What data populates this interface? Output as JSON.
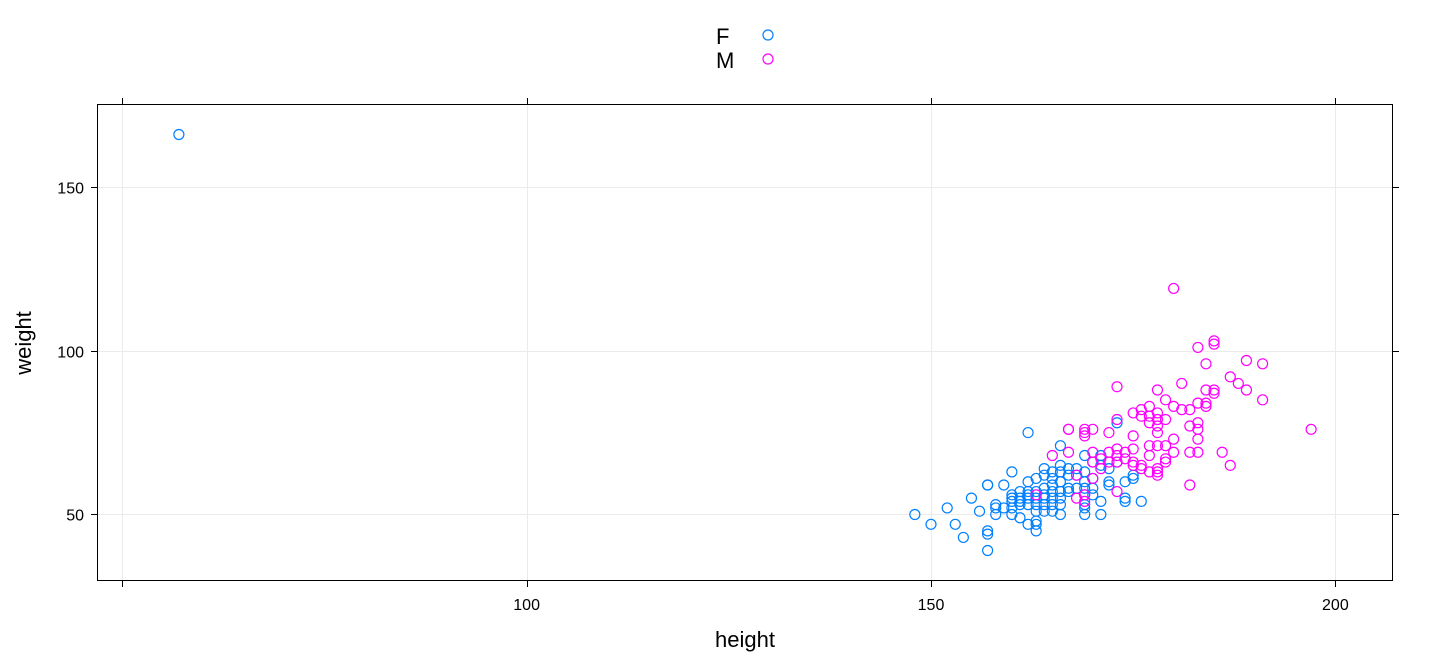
{
  "chart_data": {
    "type": "scatter",
    "xlabel": "height",
    "ylabel": "weight",
    "xlim": [
      47,
      207
    ],
    "ylim": [
      30,
      175
    ],
    "x_ticks": [
      100,
      150,
      200
    ],
    "y_ticks": [
      50,
      100,
      150
    ],
    "x_tick_labels": [
      "100",
      "150",
      "200"
    ],
    "y_tick_labels": [
      "50",
      "100",
      "150"
    ],
    "grid": true,
    "legend_placement": "top-center",
    "series": [
      {
        "name": "F",
        "color": "#0080ff",
        "points": [
          [
            57,
            166
          ],
          [
            148,
            50
          ],
          [
            150,
            47
          ],
          [
            152,
            52
          ],
          [
            153,
            47
          ],
          [
            154,
            43
          ],
          [
            155,
            55
          ],
          [
            156,
            51
          ],
          [
            157,
            59
          ],
          [
            157,
            59
          ],
          [
            157,
            45
          ],
          [
            157,
            44
          ],
          [
            157,
            39
          ],
          [
            158,
            53
          ],
          [
            158,
            52
          ],
          [
            158,
            50
          ],
          [
            159,
            59
          ],
          [
            159,
            52
          ],
          [
            160,
            63
          ],
          [
            160,
            56
          ],
          [
            160,
            55
          ],
          [
            160,
            54
          ],
          [
            160,
            52
          ],
          [
            160,
            50
          ],
          [
            161,
            57
          ],
          [
            161,
            55
          ],
          [
            161,
            54
          ],
          [
            161,
            53
          ],
          [
            161,
            49
          ],
          [
            162,
            75
          ],
          [
            162,
            60
          ],
          [
            162,
            57
          ],
          [
            162,
            56
          ],
          [
            162,
            55
          ],
          [
            162,
            53
          ],
          [
            162,
            47
          ],
          [
            163,
            61
          ],
          [
            163,
            57
          ],
          [
            163,
            55
          ],
          [
            163,
            53
          ],
          [
            163,
            51
          ],
          [
            163,
            48
          ],
          [
            163,
            47
          ],
          [
            163,
            45
          ],
          [
            164,
            64
          ],
          [
            164,
            62
          ],
          [
            164,
            58
          ],
          [
            164,
            56
          ],
          [
            164,
            55
          ],
          [
            164,
            53
          ],
          [
            164,
            51
          ],
          [
            165,
            63
          ],
          [
            165,
            61
          ],
          [
            165,
            59
          ],
          [
            165,
            57
          ],
          [
            165,
            55
          ],
          [
            165,
            53
          ],
          [
            165,
            51
          ],
          [
            166,
            71
          ],
          [
            166,
            65
          ],
          [
            166,
            63
          ],
          [
            166,
            60
          ],
          [
            166,
            57
          ],
          [
            166,
            55
          ],
          [
            166,
            53
          ],
          [
            166,
            50
          ],
          [
            167,
            64
          ],
          [
            167,
            62
          ],
          [
            167,
            58
          ],
          [
            167,
            57
          ],
          [
            168,
            64
          ],
          [
            168,
            62
          ],
          [
            168,
            58
          ],
          [
            169,
            68
          ],
          [
            169,
            63
          ],
          [
            169,
            60
          ],
          [
            169,
            58
          ],
          [
            169,
            56
          ],
          [
            169,
            53
          ],
          [
            169,
            52
          ],
          [
            169,
            50
          ],
          [
            170,
            66
          ],
          [
            170,
            61
          ],
          [
            170,
            58
          ],
          [
            170,
            56
          ],
          [
            171,
            68
          ],
          [
            171,
            65
          ],
          [
            171,
            54
          ],
          [
            171,
            50
          ],
          [
            172,
            64
          ],
          [
            172,
            60
          ],
          [
            172,
            59
          ],
          [
            173,
            78
          ],
          [
            173,
            66
          ],
          [
            174,
            60
          ],
          [
            174,
            55
          ],
          [
            174,
            54
          ],
          [
            175,
            62
          ],
          [
            175,
            61
          ],
          [
            176,
            54
          ]
        ]
      },
      {
        "name": "M",
        "color": "#ff00ff",
        "points": [
          [
            163,
            56
          ],
          [
            165,
            68
          ],
          [
            167,
            76
          ],
          [
            167,
            76
          ],
          [
            167,
            69
          ],
          [
            168,
            62
          ],
          [
            168,
            55
          ],
          [
            169,
            76
          ],
          [
            169,
            75
          ],
          [
            169,
            74
          ],
          [
            169,
            56
          ],
          [
            169,
            54
          ],
          [
            170,
            76
          ],
          [
            170,
            69
          ],
          [
            170,
            66
          ],
          [
            170,
            61
          ],
          [
            171,
            67
          ],
          [
            171,
            64
          ],
          [
            172,
            75
          ],
          [
            172,
            69
          ],
          [
            172,
            66
          ],
          [
            173,
            89
          ],
          [
            173,
            79
          ],
          [
            173,
            70
          ],
          [
            173,
            68
          ],
          [
            173,
            66
          ],
          [
            173,
            57
          ],
          [
            174,
            69
          ],
          [
            174,
            67
          ],
          [
            175,
            81
          ],
          [
            175,
            74
          ],
          [
            175,
            70
          ],
          [
            175,
            66
          ],
          [
            175,
            65
          ],
          [
            176,
            82
          ],
          [
            176,
            80
          ],
          [
            176,
            65
          ],
          [
            176,
            64
          ],
          [
            177,
            83
          ],
          [
            177,
            80
          ],
          [
            177,
            78
          ],
          [
            177,
            71
          ],
          [
            177,
            68
          ],
          [
            177,
            63
          ],
          [
            178,
            88
          ],
          [
            178,
            81
          ],
          [
            178,
            79
          ],
          [
            178,
            77
          ],
          [
            178,
            75
          ],
          [
            178,
            71
          ],
          [
            178,
            64
          ],
          [
            178,
            63
          ],
          [
            178,
            62
          ],
          [
            179,
            85
          ],
          [
            179,
            79
          ],
          [
            179,
            71
          ],
          [
            179,
            67
          ],
          [
            179,
            66
          ],
          [
            180,
            119
          ],
          [
            180,
            83
          ],
          [
            180,
            73
          ],
          [
            180,
            69
          ],
          [
            181,
            90
          ],
          [
            181,
            82
          ],
          [
            182,
            82
          ],
          [
            182,
            77
          ],
          [
            182,
            69
          ],
          [
            182,
            59
          ],
          [
            183,
            101
          ],
          [
            183,
            84
          ],
          [
            183,
            78
          ],
          [
            183,
            76
          ],
          [
            183,
            73
          ],
          [
            183,
            69
          ],
          [
            184,
            96
          ],
          [
            184,
            88
          ],
          [
            184,
            84
          ],
          [
            184,
            83
          ],
          [
            185,
            103
          ],
          [
            185,
            102
          ],
          [
            185,
            88
          ],
          [
            185,
            87
          ],
          [
            186,
            69
          ],
          [
            187,
            92
          ],
          [
            187,
            65
          ],
          [
            188,
            90
          ],
          [
            189,
            97
          ],
          [
            189,
            88
          ],
          [
            191,
            96
          ],
          [
            191,
            85
          ],
          [
            197,
            76
          ]
        ]
      }
    ]
  }
}
